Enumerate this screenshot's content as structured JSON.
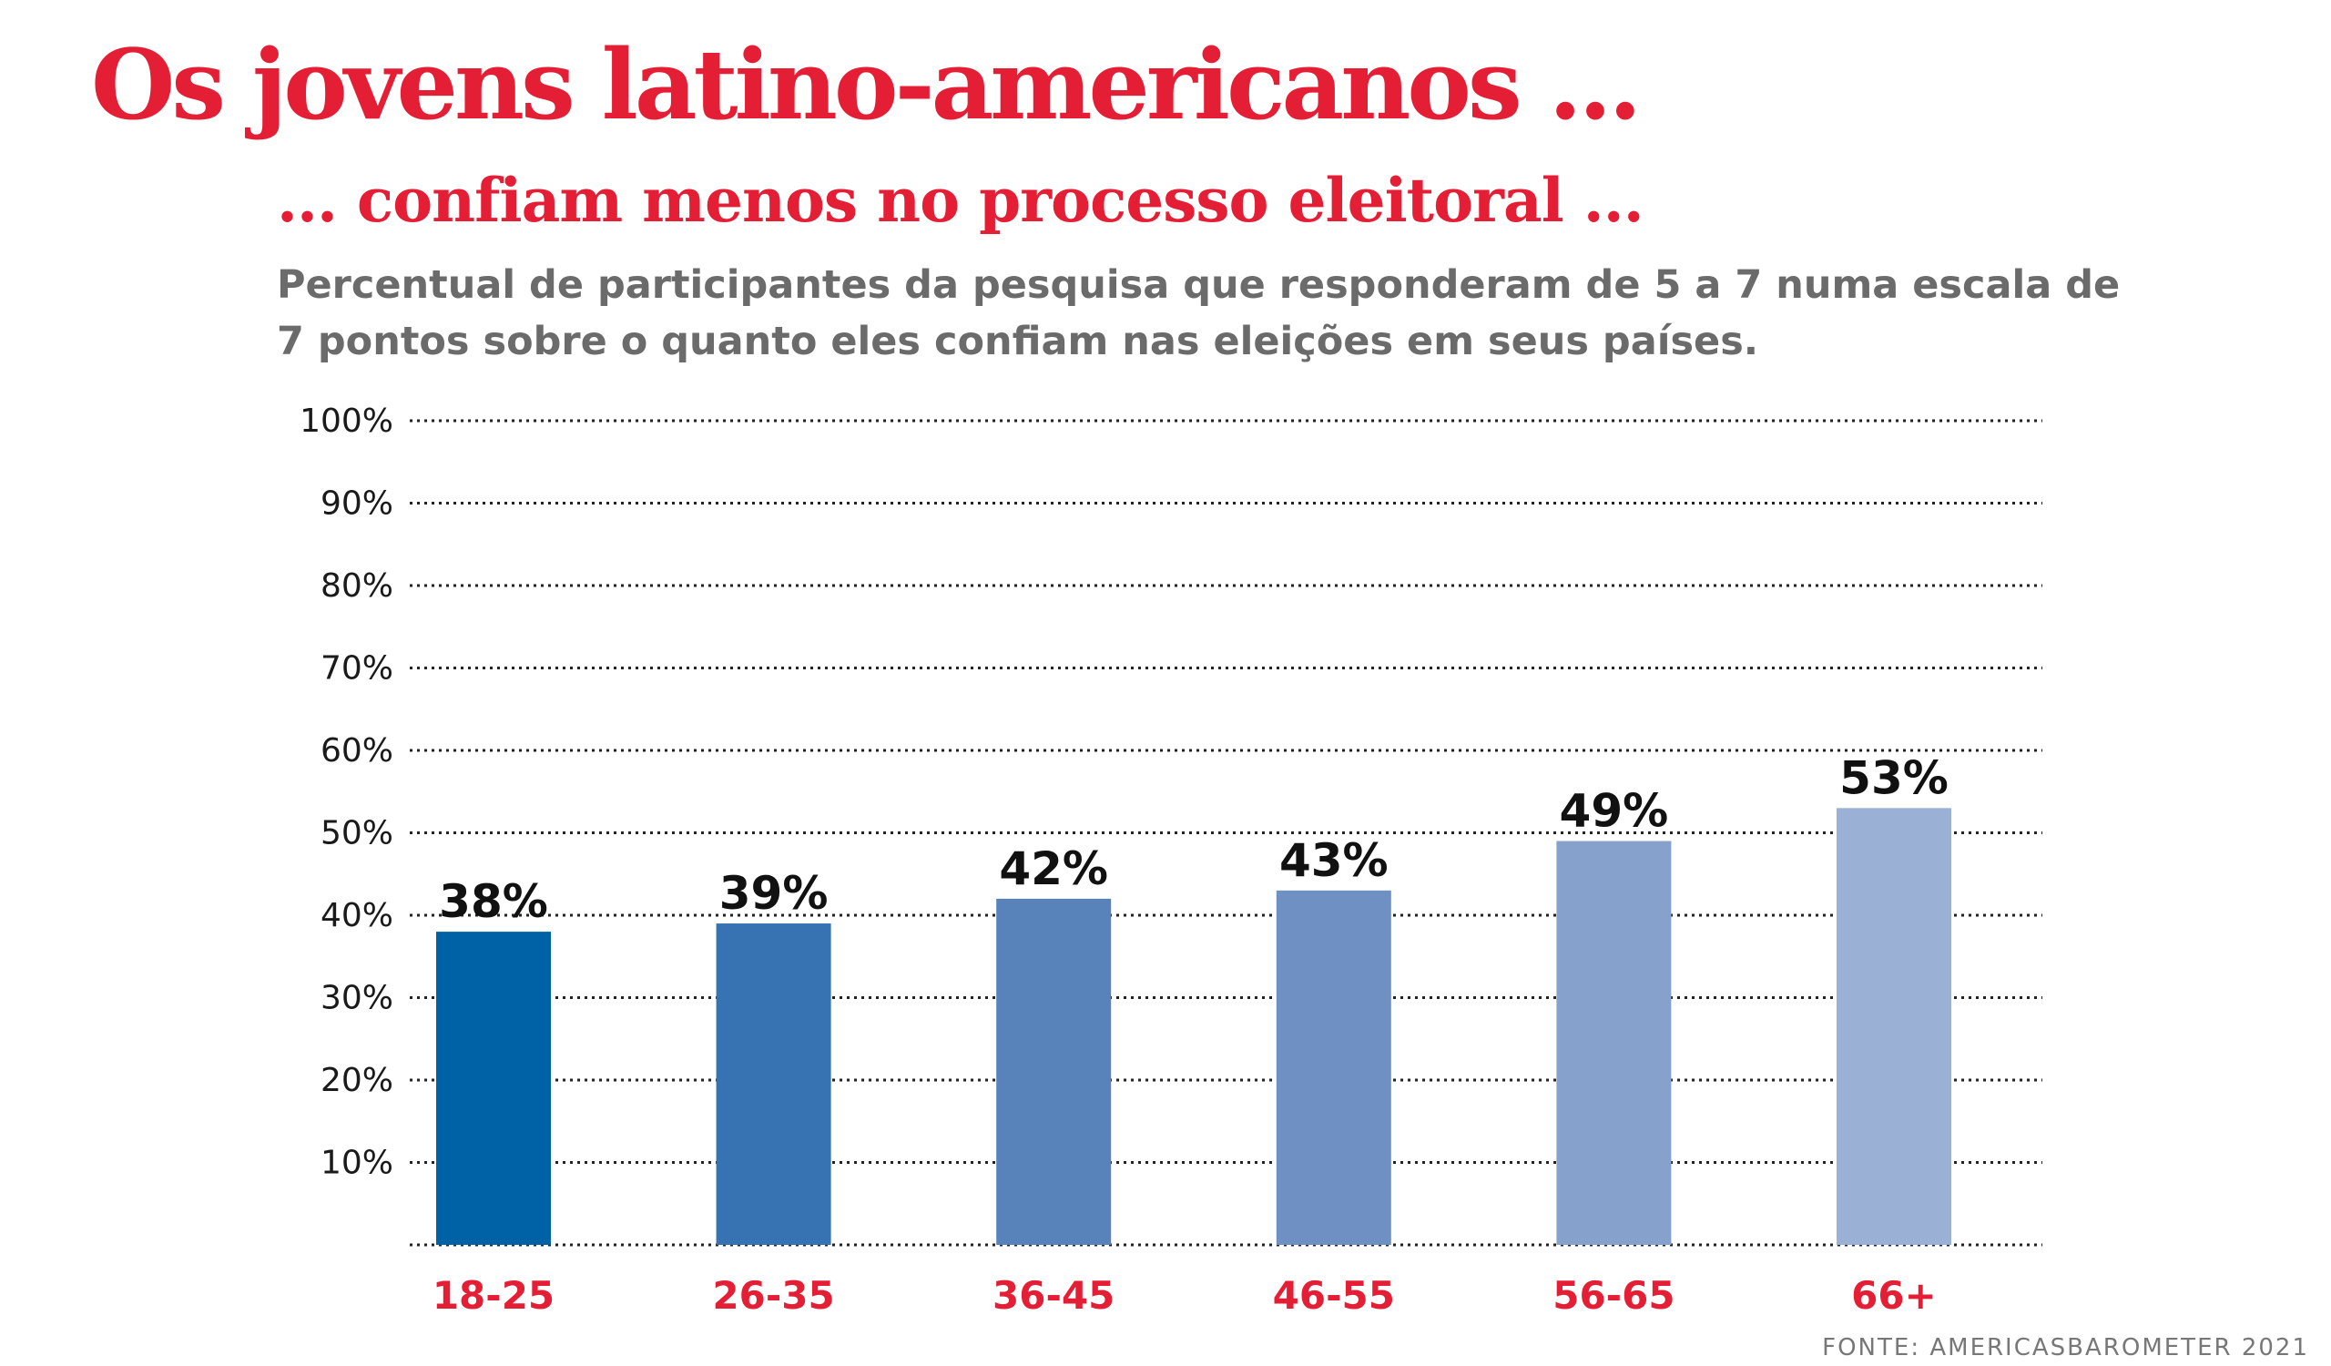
{
  "header": {
    "title": "Os jovens latino-americanos ...",
    "subtitle": "... confiam menos no processo eleitoral ...",
    "description": "Percentual de participantes da pesquisa que responderam de 5 a 7 numa escala de 7 pontos sobre o quanto eles confiam nas eleições em seus países."
  },
  "footer": {
    "source": "FONTE: AMERICASBAROMETER 2021"
  },
  "chart_data": {
    "type": "bar",
    "categories": [
      "18-25",
      "26-35",
      "36-45",
      "46-55",
      "56-65",
      "66+"
    ],
    "values": [
      38,
      39,
      42,
      43,
      49,
      53
    ],
    "value_labels": [
      "38%",
      "39%",
      "42%",
      "43%",
      "49%",
      "53%"
    ],
    "yticks": [
      10,
      20,
      30,
      40,
      50,
      60,
      70,
      80,
      90,
      100
    ],
    "ytick_labels": [
      "10%",
      "20%",
      "30%",
      "40%",
      "50%",
      "60%",
      "70%",
      "80%",
      "90%",
      "100%"
    ],
    "ylim": [
      0,
      100
    ],
    "grid": true,
    "bar_colors": [
      "#0062a6",
      "#3773b2",
      "#5882ba",
      "#6f90c2",
      "#86a2cc",
      "#9ab0d5"
    ],
    "category_label_color": "#e41f35",
    "value_label_color": "#111111"
  }
}
